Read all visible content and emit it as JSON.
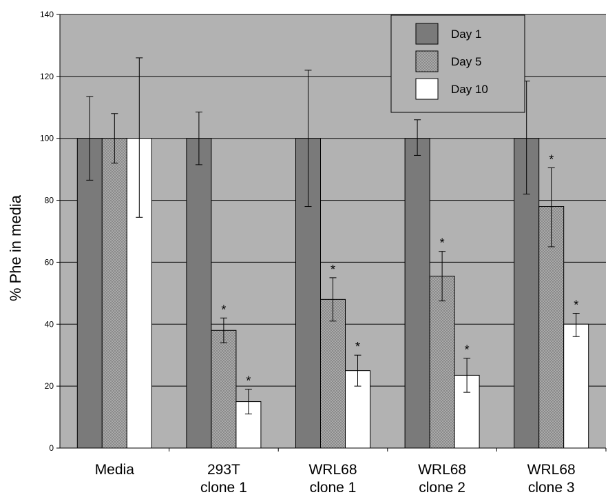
{
  "chart_data": {
    "type": "bar",
    "title": "",
    "xlabel": "",
    "ylabel": "% Phe in media",
    "ylim": [
      0,
      140
    ],
    "yticks": [
      0,
      20,
      40,
      60,
      80,
      100,
      120,
      140
    ],
    "grid": true,
    "legend_position": "top-right",
    "categories": [
      {
        "line1": "Media",
        "line2": ""
      },
      {
        "line1": "293T",
        "line2": "clone 1"
      },
      {
        "line1": "WRL68",
        "line2": "clone 1"
      },
      {
        "line1": "WRL68",
        "line2": "clone 2"
      },
      {
        "line1": "WRL68",
        "line2": "clone 3"
      }
    ],
    "series": [
      {
        "name": "Day 1",
        "color": "#7a7a7a",
        "pattern": "solid",
        "values": [
          100,
          100,
          100,
          100,
          100
        ],
        "error": [
          [
            86.5,
            113.5
          ],
          [
            91.5,
            108.5
          ],
          [
            78,
            122
          ],
          [
            94.5,
            106
          ],
          [
            82,
            118.5
          ]
        ],
        "significant": [
          false,
          false,
          false,
          false,
          false
        ]
      },
      {
        "name": "Day 5",
        "color": "#8a8a8a",
        "pattern": "dotted",
        "values": [
          100,
          38,
          48,
          55.5,
          78
        ],
        "error": [
          [
            92,
            108
          ],
          [
            34,
            42
          ],
          [
            41,
            55
          ],
          [
            47.5,
            63.5
          ],
          [
            65,
            90.5
          ]
        ],
        "significant": [
          false,
          true,
          true,
          true,
          true
        ]
      },
      {
        "name": "Day 10",
        "color": "#ffffff",
        "pattern": "solid",
        "values": [
          100,
          15,
          25,
          23.5,
          40
        ],
        "error": [
          [
            74.5,
            126
          ],
          [
            11,
            19
          ],
          [
            20,
            30
          ],
          [
            18,
            29
          ],
          [
            36,
            43.5
          ]
        ],
        "significant": [
          false,
          true,
          true,
          true,
          true
        ]
      }
    ],
    "significance_marker": "*"
  }
}
